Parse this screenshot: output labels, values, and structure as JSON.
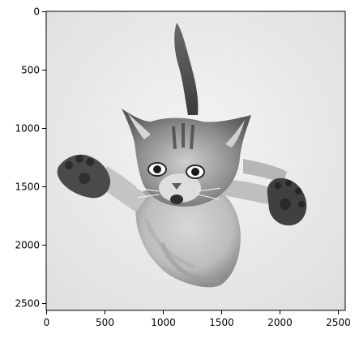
{
  "figure": {
    "x_ticks": [
      "0",
      "500",
      "1000",
      "1500",
      "2000",
      "2500"
    ],
    "y_ticks": [
      "0",
      "500",
      "1000",
      "1500",
      "2000",
      "2500"
    ],
    "x_range": [
      0,
      2560
    ],
    "y_range": [
      0,
      2560
    ],
    "image_subject": "grayscale photo of a kitten leaping toward the camera with paws outstretched",
    "colors": {
      "background": "#ececec",
      "fur_light": "#cfcfcf",
      "fur_mid": "#9a9a9a",
      "fur_dark": "#3a3a3a",
      "frame": "#000000"
    }
  }
}
